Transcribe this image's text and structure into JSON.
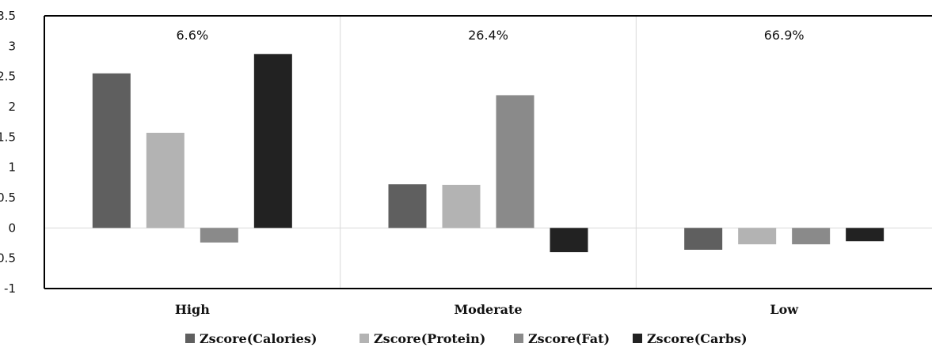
{
  "chart_data": {
    "type": "bar",
    "categories": [
      "High",
      "Moderate",
      "Low"
    ],
    "group_labels": [
      "6.6%",
      "26.4%",
      "66.9%"
    ],
    "series": [
      {
        "name": "Zscore(Calories)",
        "color": "#5f5f5f",
        "values": [
          2.55,
          0.72,
          -0.36
        ]
      },
      {
        "name": "Zscore(Protein)",
        "color": "#b3b3b3",
        "values": [
          1.57,
          0.71,
          -0.27
        ]
      },
      {
        "name": "Zscore(Fat)",
        "color": "#8a8a8a",
        "values": [
          -0.24,
          2.19,
          -0.27
        ]
      },
      {
        "name": "Zscore(Carbs)",
        "color": "#222222",
        "values": [
          2.87,
          -0.4,
          -0.22
        ]
      }
    ],
    "ylim": [
      -1,
      3.5
    ],
    "yticks": [
      "3.5",
      "3",
      "2.5",
      "2",
      "1.5",
      "1",
      "0.5",
      "0",
      "-0.5",
      "-1"
    ],
    "ytick_values": [
      3.5,
      3,
      2.5,
      2,
      1.5,
      1,
      0.5,
      0,
      -0.5,
      -1
    ],
    "legend_position": "bottom",
    "grid": false
  }
}
